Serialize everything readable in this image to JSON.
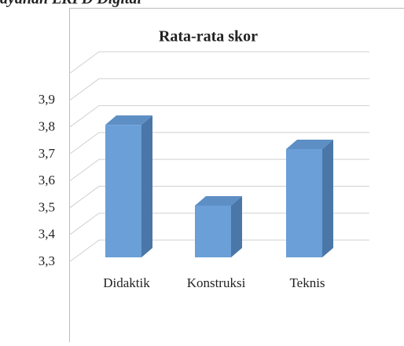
{
  "page_text": "ayanan LKPD Digital",
  "chart_data": {
    "type": "bar",
    "title": "Rata-rata skor",
    "categories": [
      "Didaktik",
      "Konstruksi",
      "Teknis"
    ],
    "values": [
      3.81,
      3.51,
      3.72
    ],
    "color": "#6a9fd8",
    "ylim": [
      3.3,
      4.0
    ],
    "yticks": [
      {
        "value": 3.3,
        "label": "3,3"
      },
      {
        "value": 3.4,
        "label": "3,4"
      },
      {
        "value": 3.5,
        "label": "3,5"
      },
      {
        "value": 3.6,
        "label": "3,6"
      },
      {
        "value": 3.7,
        "label": "3,7"
      },
      {
        "value": 3.8,
        "label": "3,8"
      },
      {
        "value": 3.9,
        "label": "3,9"
      }
    ],
    "grid": true
  }
}
